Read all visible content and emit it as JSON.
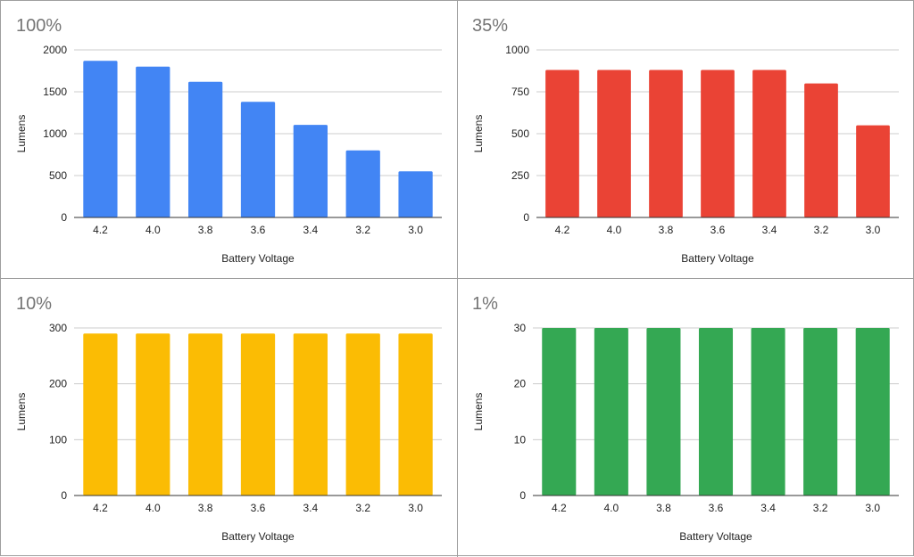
{
  "chart_data": [
    {
      "type": "bar",
      "title": "100%",
      "xlabel": "Battery Voltage",
      "ylabel": "Lumens",
      "categories": [
        "4.2",
        "4.0",
        "3.8",
        "3.6",
        "3.4",
        "3.2",
        "3.0"
      ],
      "values": [
        1870,
        1800,
        1620,
        1380,
        1105,
        800,
        550
      ],
      "ylim": [
        0,
        2000
      ],
      "yticks": [
        "0",
        "500",
        "1000",
        "1500",
        "2000"
      ],
      "color": "#4285F4",
      "grid": true
    },
    {
      "type": "bar",
      "title": "35%",
      "xlabel": "Battery Voltage",
      "ylabel": "Lumens",
      "categories": [
        "4.2",
        "4.0",
        "3.8",
        "3.6",
        "3.4",
        "3.2",
        "3.0"
      ],
      "values": [
        880,
        880,
        880,
        880,
        880,
        800,
        550
      ],
      "ylim": [
        0,
        1000
      ],
      "yticks": [
        "0",
        "250",
        "500",
        "750",
        "1000"
      ],
      "color": "#EA4335",
      "grid": true
    },
    {
      "type": "bar",
      "title": "10%",
      "xlabel": "Battery Voltage",
      "ylabel": "Lumens",
      "categories": [
        "4.2",
        "4.0",
        "3.8",
        "3.6",
        "3.4",
        "3.2",
        "3.0"
      ],
      "values": [
        290,
        290,
        290,
        290,
        290,
        290,
        290
      ],
      "ylim": [
        0,
        300
      ],
      "yticks": [
        "0",
        "100",
        "200",
        "300"
      ],
      "color": "#FBBC04",
      "grid": true
    },
    {
      "type": "bar",
      "title": "1%",
      "xlabel": "Battery Voltage",
      "ylabel": "Lumens",
      "categories": [
        "4.2",
        "4.0",
        "3.8",
        "3.6",
        "3.4",
        "3.2",
        "3.0"
      ],
      "values": [
        30,
        30,
        30,
        30,
        30,
        30,
        30
      ],
      "ylim": [
        0,
        30
      ],
      "yticks": [
        "0",
        "10",
        "20",
        "30"
      ],
      "color": "#34A853",
      "grid": true
    }
  ]
}
